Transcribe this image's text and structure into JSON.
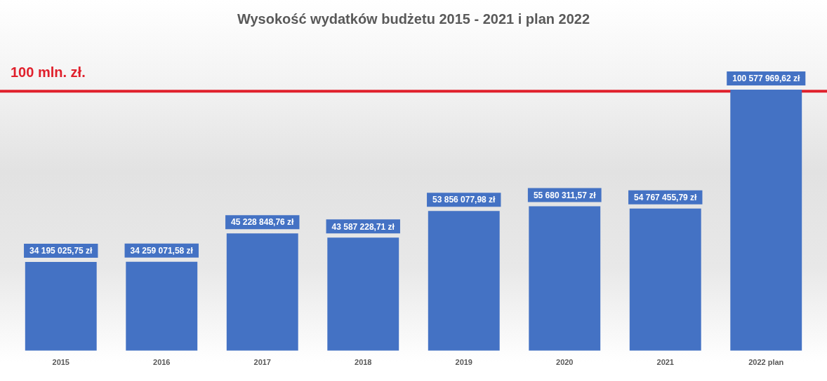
{
  "chart_data": {
    "type": "bar",
    "title": "Wysokość wydatków budżetu 2015 - 2021 i plan 2022",
    "categories": [
      "2015",
      "2016",
      "2017",
      "2018",
      "2019",
      "2020",
      "2021",
      "2022 plan"
    ],
    "values": [
      34195025.75,
      34259071.58,
      45228848.76,
      43587228.71,
      53856077.98,
      55680311.57,
      54767455.79,
      100577969.62
    ],
    "color": "#4472c4",
    "value_labels": [
      "34 195 025,75 zł",
      "34 259 071,58 zł",
      "45 228 848,76 zł",
      "43 587 228,71 zł",
      "53 856 077,98 zł",
      "55 680 311,57 zł",
      "54 767 455,79 zł",
      "100 577 969,62 zł"
    ],
    "ref_lines": [
      {
        "axis": "y",
        "value": 100000000,
        "label": "100 mln. zł.",
        "color": "#e0202c"
      }
    ],
    "tick_labels": "x",
    "grid": false,
    "legend": false
  }
}
